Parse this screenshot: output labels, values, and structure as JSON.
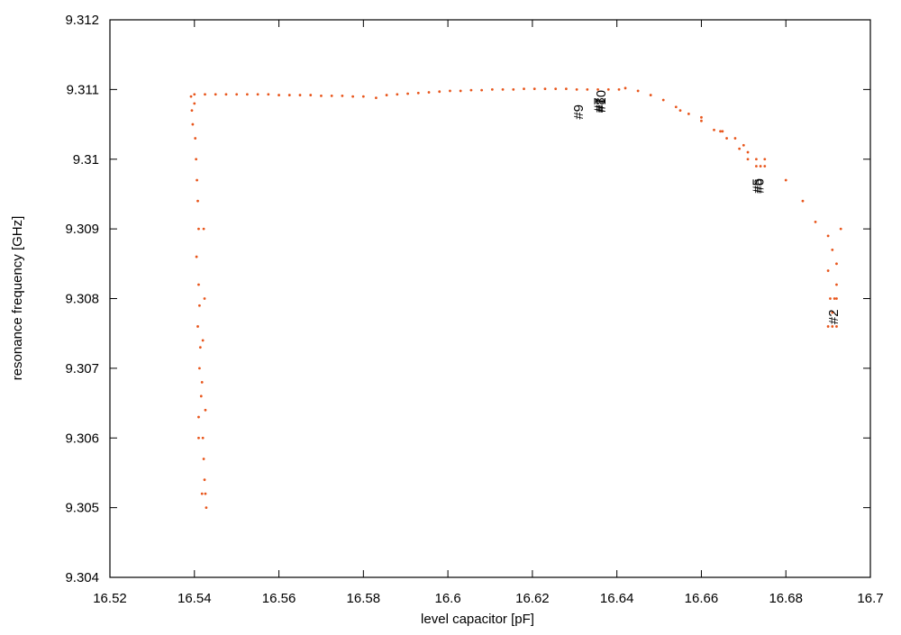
{
  "chart_data": {
    "type": "scatter",
    "xlabel": "level capacitor [pF]",
    "ylabel": "resonance frequency [GHz]",
    "xlim": [
      16.52,
      16.7
    ],
    "ylim": [
      9.304,
      9.312
    ],
    "xticks": [
      16.52,
      16.54,
      16.56,
      16.58,
      16.6,
      16.62,
      16.64,
      16.66,
      16.68,
      16.7
    ],
    "yticks": [
      9.304,
      9.305,
      9.306,
      9.307,
      9.308,
      9.309,
      9.31,
      9.311,
      9.312
    ],
    "color": "#e8561c",
    "x": [
      16.5392,
      16.5394,
      16.5396,
      16.54,
      16.5402,
      16.5404,
      16.5406,
      16.5408,
      16.541,
      16.5405,
      16.541,
      16.5412,
      16.5408,
      16.5414,
      16.5412,
      16.5416,
      16.541,
      16.5418,
      16.542,
      16.541,
      16.5422,
      16.5424,
      16.5418,
      16.5426,
      16.5428,
      16.542,
      16.5422,
      16.5424,
      16.5426,
      16.54,
      16.5425,
      16.545,
      16.5475,
      16.55,
      16.5525,
      16.555,
      16.5575,
      16.56,
      16.5625,
      16.565,
      16.5675,
      16.57,
      16.5725,
      16.575,
      16.5775,
      16.58,
      16.583,
      16.5855,
      16.588,
      16.5905,
      16.593,
      16.5955,
      16.598,
      16.6005,
      16.603,
      16.6055,
      16.608,
      16.6105,
      16.613,
      16.6155,
      16.618,
      16.6205,
      16.623,
      16.6255,
      16.628,
      16.6305,
      16.633,
      16.6355,
      16.638,
      16.6405,
      16.642,
      16.645,
      16.648,
      16.651,
      16.654,
      16.657,
      16.66,
      16.663,
      16.666,
      16.669,
      16.671,
      16.673,
      16.674,
      16.675,
      16.655,
      16.66,
      16.665,
      16.67,
      16.675,
      16.68,
      16.684,
      16.687,
      16.69,
      16.691,
      16.692,
      16.693,
      16.692,
      16.691,
      16.69,
      16.691,
      16.692,
      16.6905,
      16.6915,
      16.69,
      16.692,
      16.6645,
      16.668,
      16.671,
      16.673
    ],
    "y": [
      9.3109,
      9.3107,
      9.3105,
      9.3108,
      9.3103,
      9.31,
      9.3097,
      9.3094,
      9.309,
      9.3086,
      9.3082,
      9.3079,
      9.3076,
      9.3073,
      9.307,
      9.3066,
      9.3063,
      9.3068,
      9.306,
      9.306,
      9.3057,
      9.3054,
      9.3052,
      9.3052,
      9.305,
      9.3074,
      9.309,
      9.308,
      9.3064,
      9.31093,
      9.31093,
      9.31093,
      9.31093,
      9.31093,
      9.31093,
      9.31093,
      9.31093,
      9.31092,
      9.31092,
      9.31092,
      9.31092,
      9.31091,
      9.31091,
      9.31091,
      9.3109,
      9.3109,
      9.31088,
      9.31092,
      9.31093,
      9.31094,
      9.31095,
      9.31096,
      9.31097,
      9.31098,
      9.31098,
      9.31099,
      9.31099,
      9.311,
      9.311,
      9.311,
      9.31101,
      9.31101,
      9.31101,
      9.31101,
      9.31101,
      9.311,
      9.311,
      9.311,
      9.311,
      9.311,
      9.31102,
      9.31098,
      9.31092,
      9.31085,
      9.31075,
      9.31065,
      9.31055,
      9.31042,
      9.3103,
      9.31015,
      9.31,
      9.3099,
      9.3099,
      9.3099,
      9.3107,
      9.3106,
      9.3104,
      9.3102,
      9.31,
      9.3097,
      9.3094,
      9.3091,
      9.3089,
      9.3087,
      9.3085,
      9.309,
      9.308,
      9.3078,
      9.3076,
      9.3076,
      9.3076,
      9.308,
      9.308,
      9.3084,
      9.3082,
      9.3104,
      9.3103,
      9.3101,
      9.31
    ],
    "annotations": [
      {
        "text": "#9",
        "x": 16.6311,
        "y": 9.31057
      },
      {
        "text": "#7",
        "x": 16.6359,
        "y": 9.31067
      },
      {
        "text": "#8",
        "x": 16.6362,
        "y": 9.31067
      },
      {
        "text": "#10",
        "x": 16.6365,
        "y": 9.31067
      },
      {
        "text": "#5",
        "x": 16.6735,
        "y": 9.30951
      },
      {
        "text": "#6",
        "x": 16.6739,
        "y": 9.30951
      },
      {
        "text": "#2",
        "x": 16.6915,
        "y": 9.30763
      }
    ]
  }
}
